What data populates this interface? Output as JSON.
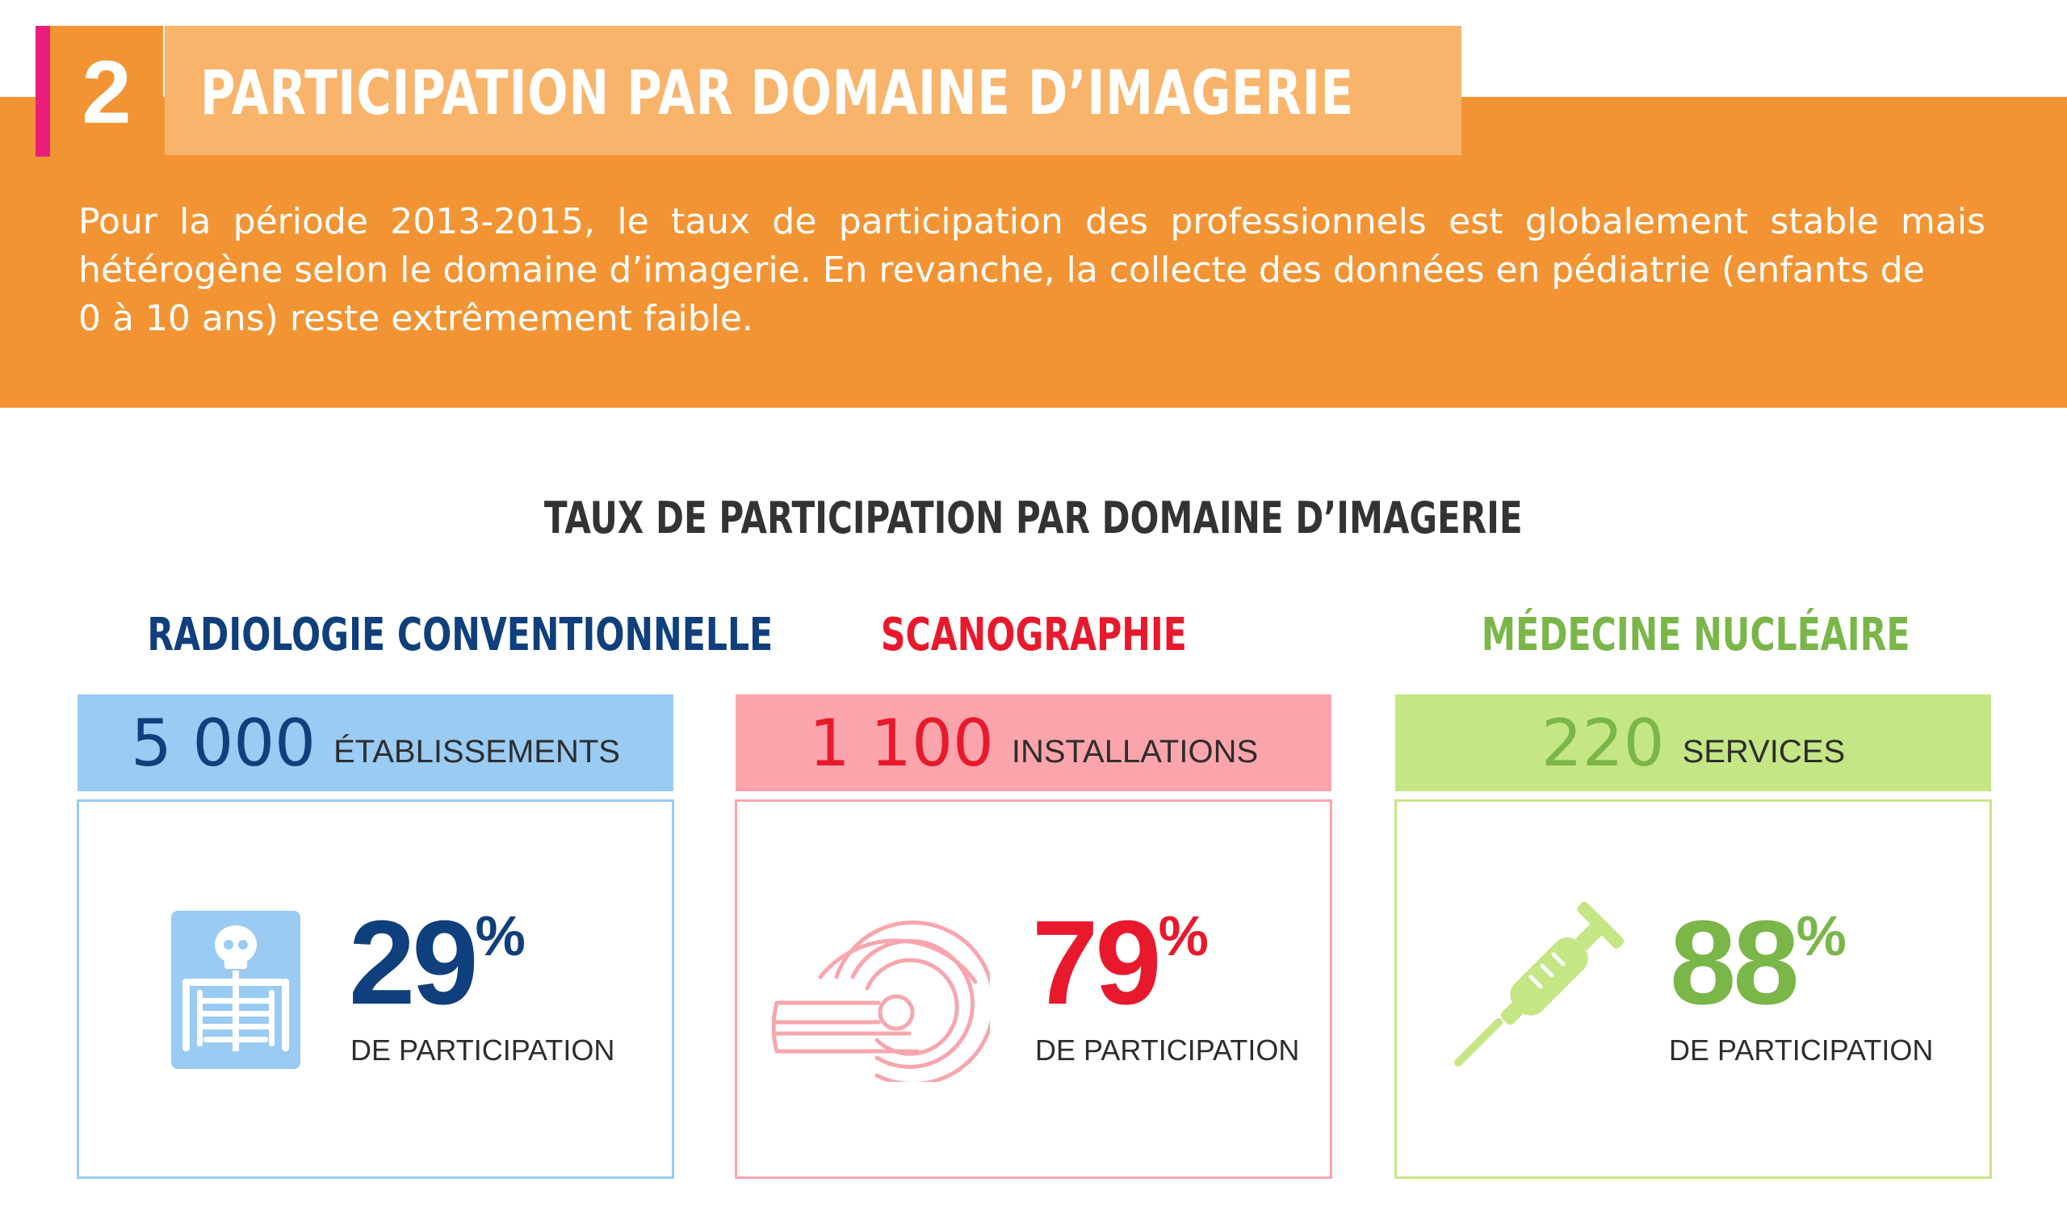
{
  "header": {
    "number": "2",
    "title": "PARTICIPATION PAR DOMAINE D’IMAGERIE",
    "intro_main": "Pour la période 2013-2015, le taux de participation des professionnels est globalement stable mais hétérogène selon le domaine d’imagerie. En revanche, la collecte des données en pédiatrie (enfants de",
    "intro_last": "0 à 10 ans) reste extrêmement faible."
  },
  "section_title": "TAUX DE PARTICIPATION PAR DOMAINE D’IMAGERIE",
  "domains": [
    {
      "title": "RADIOLOGIE CONVENTIONNELLE",
      "count": "5 000",
      "unit": "ÉTABLISSEMENTS",
      "rate": "29",
      "percent_sign": "%",
      "rate_label": "DE PARTICIPATION",
      "icon": "xray-skeleton-icon",
      "color": "#0f3f7c",
      "light": "#99cbf3"
    },
    {
      "title": "SCANOGRAPHIE",
      "count": "1 100",
      "unit": "INSTALLATIONS",
      "rate": "79",
      "percent_sign": "%",
      "rate_label": "DE PARTICIPATION",
      "icon": "ct-scanner-icon",
      "color": "#e8192c",
      "light": "#fca4ac"
    },
    {
      "title": "MÉDECINE NUCLÉAIRE",
      "count": "220",
      "unit": "SERVICES",
      "rate": "88",
      "percent_sign": "%",
      "rate_label": "DE PARTICIPATION",
      "icon": "syringe-icon",
      "color": "#7ab648",
      "light": "#c5e685"
    }
  ]
}
